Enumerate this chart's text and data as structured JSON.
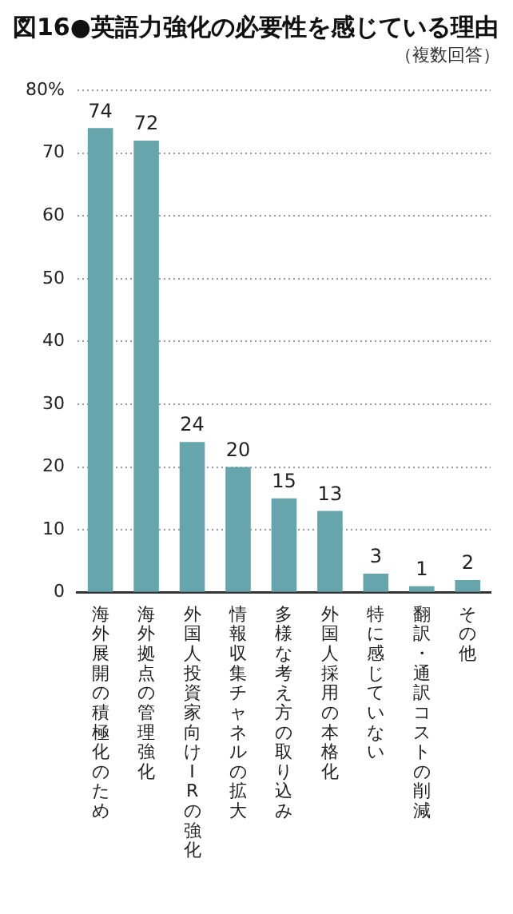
{
  "chart_data": {
    "type": "bar",
    "title": "図16●英語力強化の必要性を感じている理由",
    "subtitle": "（複数回答）",
    "categories": [
      "海外展開の積極化のため",
      "海外拠点の管理強化",
      "外国人投資家向けIRの強化",
      "情報収集チャネルの拡大",
      "多様な考え方の取り込み",
      "外国人採用の本格化",
      "特に感じていない",
      "翻訳・通訳コストの削減",
      "その他"
    ],
    "values": [
      74,
      72,
      24,
      20,
      15,
      13,
      3,
      1,
      2
    ],
    "color": "#65a5ab",
    "ylim": [
      0,
      80
    ],
    "yticks": [
      0,
      10,
      20,
      30,
      40,
      50,
      60,
      70,
      {
        "value": 80,
        "label": "80%"
      }
    ],
    "grid": "y",
    "data_labels": true
  }
}
